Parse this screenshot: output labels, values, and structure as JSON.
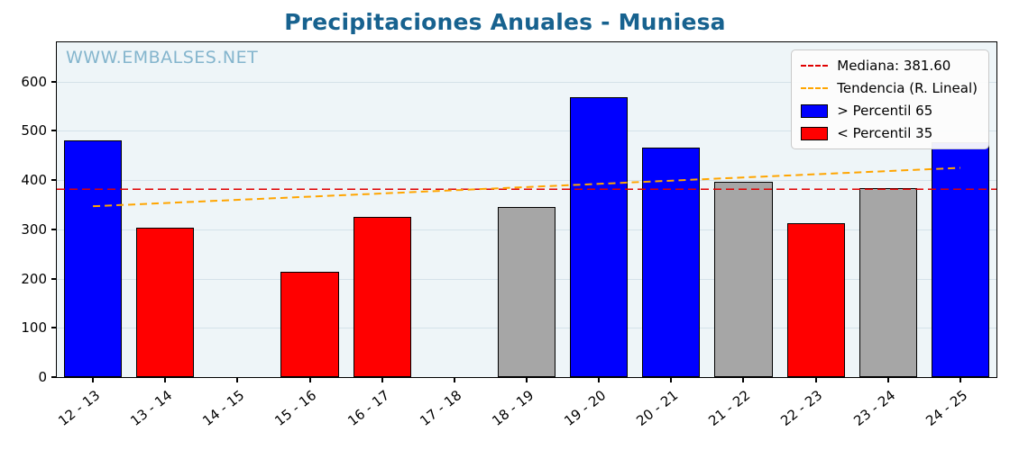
{
  "title": "Precipitaciones Anuales - Muniesa",
  "watermark": "WWW.EMBALSES.NET",
  "legend": {
    "median_label": "Mediana: 381.60",
    "trend_label": "Tendencia (R. Lineal)",
    "p65_label": "> Percentil 65",
    "p35_label": "< Percentil 35"
  },
  "colors": {
    "title": "#17628f",
    "watermark": "#84b5cd",
    "blue": "#0000ff",
    "red": "#ff0000",
    "gray": "#a6a6a6",
    "median_line": "#e00000",
    "trend_line": "#ffa500",
    "plot_bg": "#eef5f8",
    "grid": "#d4e2e9"
  },
  "chart_data": {
    "type": "bar",
    "title": "Precipitaciones Anuales - Muniesa",
    "xlabel": "",
    "ylabel": "",
    "categories": [
      "12 - 13",
      "13 - 14",
      "14 - 15",
      "15 - 16",
      "16 - 17",
      "17 - 18",
      "18 - 19",
      "19 - 20",
      "20 - 21",
      "21 - 22",
      "22 - 23",
      "23 - 24",
      "24 - 25"
    ],
    "values": [
      481,
      303,
      0,
      213,
      325,
      0,
      345,
      568,
      467,
      397,
      312,
      383,
      478
    ],
    "bar_colors": [
      "blue",
      "red",
      "none",
      "red",
      "red",
      "none",
      "gray",
      "blue",
      "blue",
      "gray",
      "red",
      "gray",
      "blue"
    ],
    "median": 381.6,
    "trend": {
      "start": 347,
      "end": 425
    },
    "yticks": [
      0,
      100,
      200,
      300,
      400,
      500,
      600
    ],
    "ylim": [
      0,
      680
    ],
    "grid": "horizontal",
    "legend_position": "upper right"
  }
}
